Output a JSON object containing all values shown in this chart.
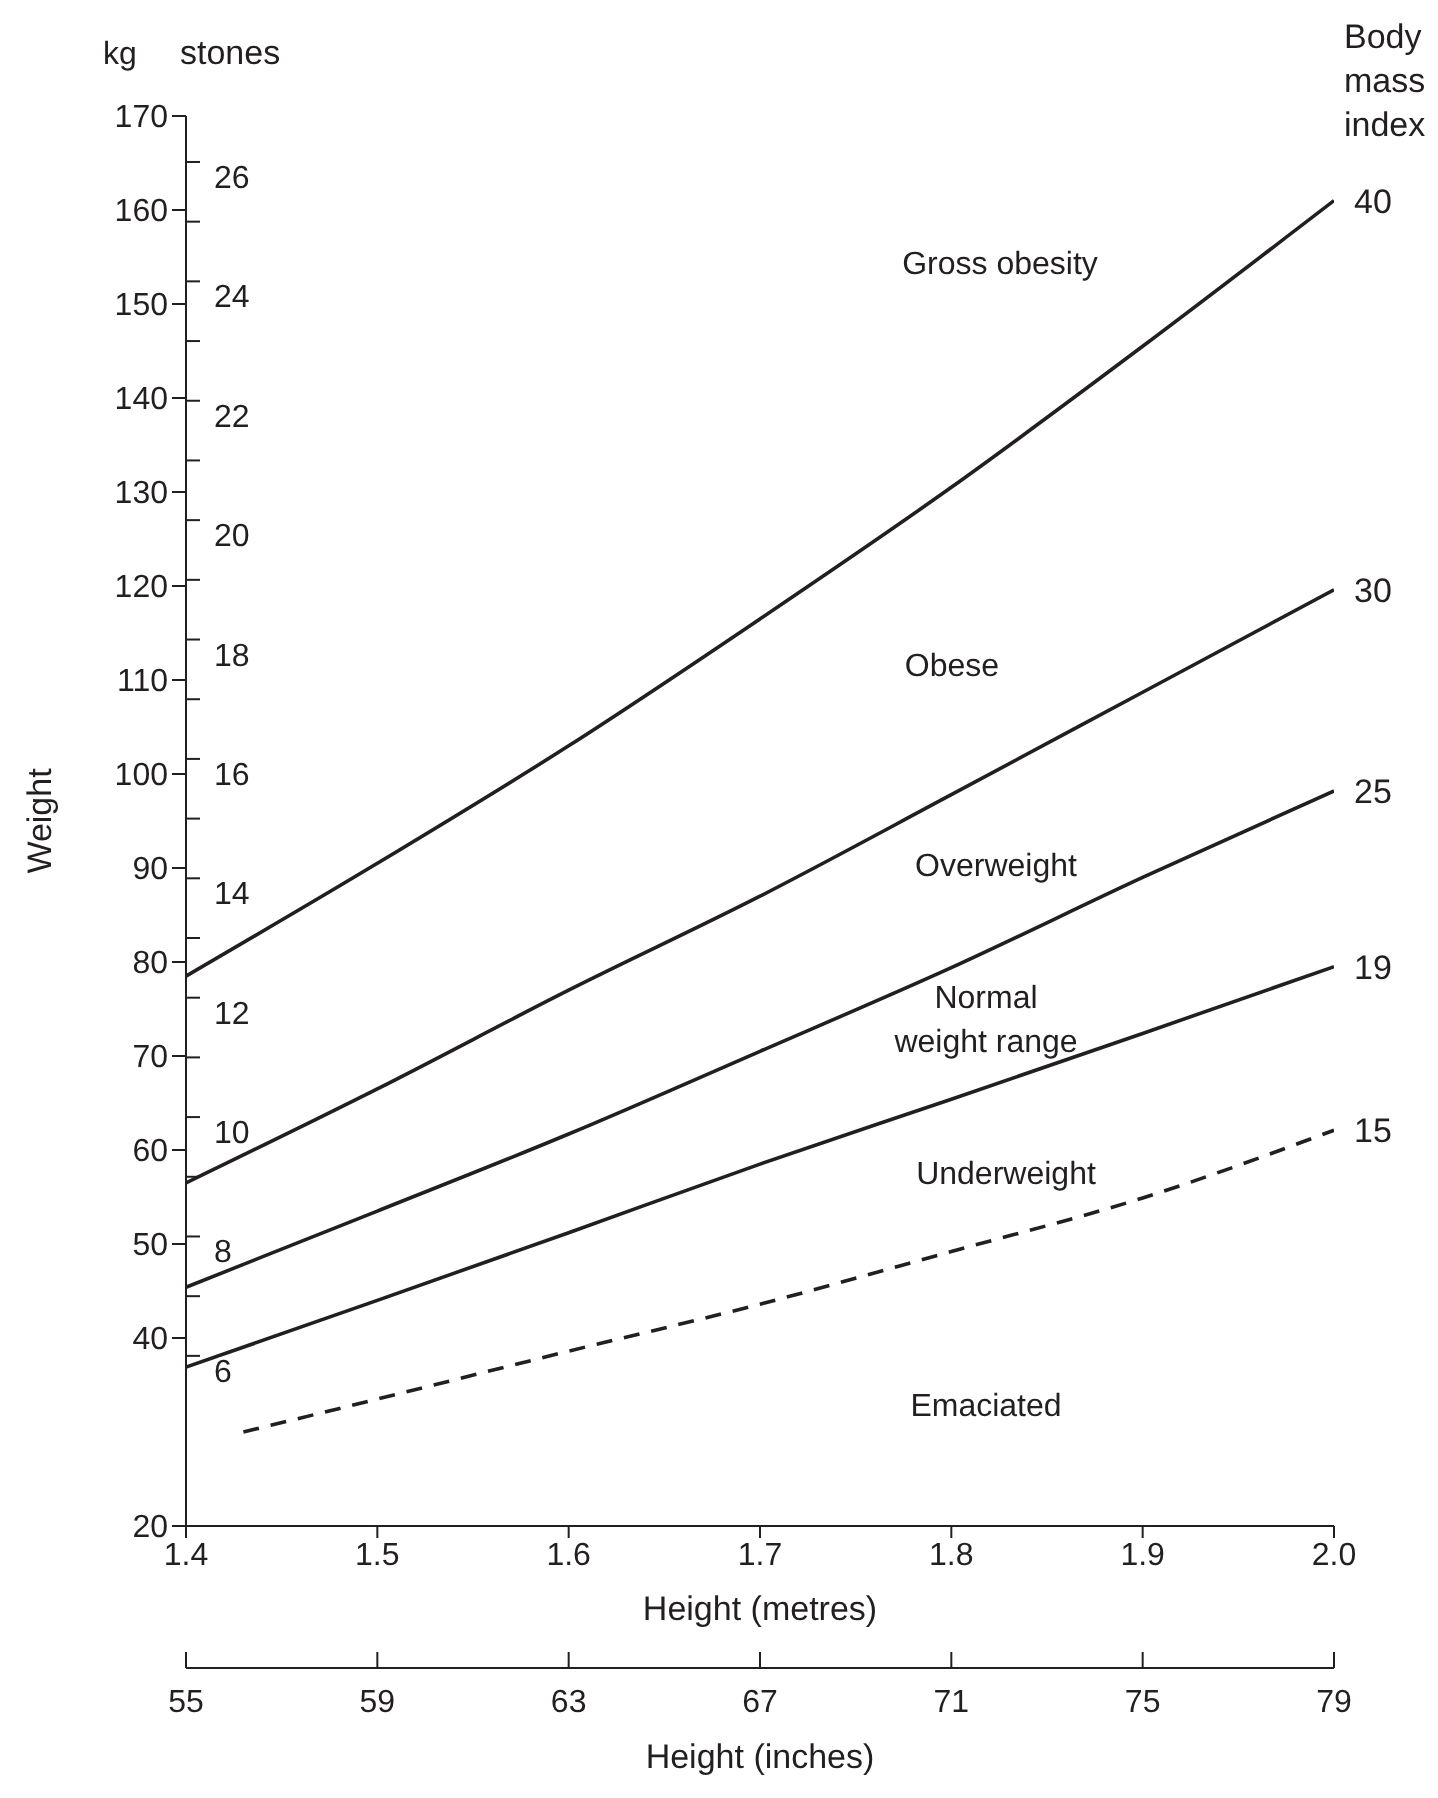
{
  "chart_data": {
    "type": "line",
    "xlabel": "Height (metres)",
    "ylabel": "Weight",
    "y2label": "stones",
    "x2label": "Height (inches)",
    "legend_title": "Body mass index",
    "x": [
      1.4,
      1.5,
      1.6,
      1.7,
      1.8,
      1.9,
      2.0
    ],
    "series": [
      {
        "name": "40",
        "color": "#231f20",
        "values": [
          78.5,
          90.5,
          103,
          116.5,
          130.5,
          145.5,
          161
        ]
      },
      {
        "name": "30",
        "color": "#231f20",
        "values": [
          56.5,
          66.5,
          77,
          87,
          97.8,
          108.7,
          119.6
        ]
      },
      {
        "name": "25",
        "color": "#231f20",
        "values": [
          45.4,
          53.5,
          61.7,
          70.5,
          79.4,
          89,
          98.2
        ]
      },
      {
        "name": "19",
        "color": "#231f20",
        "values": [
          36.9,
          44,
          51.2,
          58.5,
          65.4,
          72.4,
          79.5
        ]
      },
      {
        "name": "15",
        "color": "#231f20",
        "line_style": "dashed",
        "x": [
          1.43,
          1.5,
          1.6,
          1.7,
          1.8,
          1.9,
          2.0
        ],
        "values": [
          30,
          33.5,
          38.6,
          43.6,
          49.2,
          54.9,
          62.1
        ]
      }
    ],
    "xlim": [
      1.4,
      2.0
    ],
    "xticks": [
      {
        "value": 1.4,
        "label": "1.4"
      },
      {
        "value": 1.5,
        "label": "1.5"
      },
      {
        "value": 1.6,
        "label": "1.6"
      },
      {
        "value": 1.7,
        "label": "1.7"
      },
      {
        "value": 1.8,
        "label": "1.8"
      },
      {
        "value": 1.9,
        "label": "1.9"
      },
      {
        "value": 2.0,
        "label": "2.0"
      }
    ],
    "x2lim": [
      55,
      79
    ],
    "x2ticks": [
      55,
      59,
      63,
      67,
      71,
      75,
      79
    ],
    "ylim": [
      20,
      170
    ],
    "yticks": [
      20,
      40,
      50,
      60,
      70,
      80,
      90,
      100,
      110,
      120,
      130,
      140,
      150,
      160,
      170
    ],
    "y2lim": [
      3.15,
      26.77
    ],
    "y2ticks": [
      6,
      {
        "value": 7,
        "label": null
      },
      8,
      {
        "value": 9,
        "label": null
      },
      10,
      {
        "value": 11,
        "label": null
      },
      12,
      {
        "value": 13,
        "label": null
      },
      14,
      {
        "value": 15,
        "label": null
      },
      16,
      {
        "value": 17,
        "label": null
      },
      18,
      {
        "value": 19,
        "label": null
      },
      20,
      {
        "value": 21,
        "label": null
      },
      22,
      {
        "value": 23,
        "label": null
      },
      24,
      {
        "value": 25,
        "label": null
      },
      26
    ],
    "grid": false,
    "marker": "none",
    "line_style": "solid",
    "annotations": [
      "kg",
      "Gross obesity",
      "Obese",
      "Overweight",
      "Normal\nweight range",
      "Underweight",
      "Emaciated"
    ]
  }
}
